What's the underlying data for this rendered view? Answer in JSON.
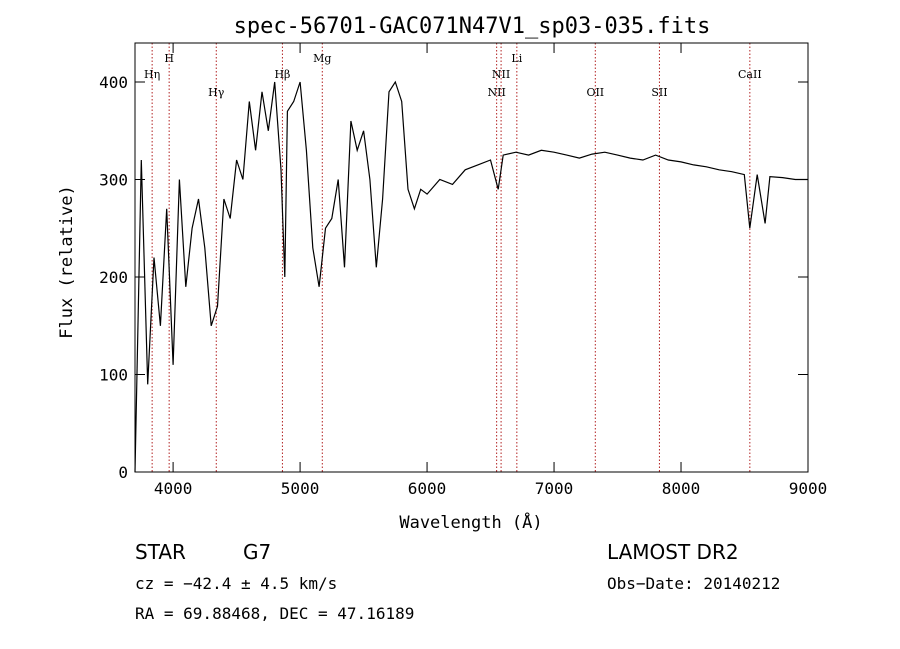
{
  "chart_data": {
    "type": "line",
    "title": "spec-56701-GAC071N47V1_sp03-035.fits",
    "xlabel": "Wavelength (Å)",
    "ylabel": "Flux (relative)",
    "xlim": [
      3700,
      9000
    ],
    "ylim": [
      0,
      440
    ],
    "x_ticks": [
      4000,
      5000,
      6000,
      7000,
      8000,
      9000
    ],
    "y_ticks": [
      0,
      100,
      200,
      300,
      400
    ],
    "grid": false,
    "line_color": "#000000",
    "marker_color": "#b22222",
    "spectral_lines": [
      {
        "label": "Hη",
        "x": 3835,
        "level": 2
      },
      {
        "label": "H",
        "x": 3969,
        "level": 1
      },
      {
        "label": "Hγ",
        "x": 4340,
        "level": 3
      },
      {
        "label": "Hβ",
        "x": 4861,
        "level": 2
      },
      {
        "label": "Mg",
        "x": 5175,
        "level": 1
      },
      {
        "label": "NII",
        "x": 6548,
        "level": 3
      },
      {
        "label": "NII",
        "x": 6583,
        "level": 2
      },
      {
        "label": "Li",
        "x": 6707,
        "level": 1
      },
      {
        "label": "OII",
        "x": 7325,
        "level": 3
      },
      {
        "label": "SII",
        "x": 7830,
        "level": 3
      },
      {
        "label": "CaII",
        "x": 8542,
        "level": 2
      }
    ],
    "series": [
      {
        "x": [
          3700,
          3750,
          3800,
          3850,
          3900,
          3950,
          4000,
          4050,
          4100,
          4150,
          4200,
          4250,
          4300,
          4350,
          4400,
          4450,
          4500,
          4550,
          4600,
          4650,
          4700,
          4750,
          4800,
          4850,
          4880,
          4900,
          4950,
          5000,
          5050,
          5100,
          5150,
          5200,
          5250,
          5300,
          5350,
          5400,
          5450,
          5500,
          5550,
          5600,
          5650,
          5700,
          5750,
          5800,
          5850,
          5900,
          5950,
          6000,
          6100,
          6200,
          6300,
          6400,
          6500,
          6560,
          6600,
          6700,
          6800,
          6900,
          7000,
          7100,
          7200,
          7300,
          7400,
          7500,
          7600,
          7700,
          7800,
          7900,
          8000,
          8100,
          8200,
          8300,
          8400,
          8498,
          8542,
          8600,
          8662,
          8700,
          8800,
          8900,
          9000
        ],
        "y": [
          0,
          320,
          90,
          220,
          150,
          270,
          110,
          300,
          190,
          250,
          280,
          230,
          150,
          170,
          280,
          260,
          320,
          300,
          380,
          330,
          390,
          350,
          400,
          310,
          200,
          370,
          380,
          400,
          330,
          230,
          190,
          250,
          260,
          300,
          210,
          360,
          330,
          350,
          300,
          210,
          280,
          390,
          400,
          380,
          290,
          270,
          290,
          285,
          300,
          295,
          310,
          315,
          320,
          290,
          325,
          328,
          325,
          330,
          328,
          325,
          322,
          326,
          328,
          325,
          322,
          320,
          325,
          320,
          318,
          315,
          313,
          310,
          308,
          305,
          250,
          305,
          255,
          303,
          302,
          300,
          300
        ]
      }
    ]
  },
  "footer": {
    "object_class": "STAR",
    "subclass": "G7",
    "survey": "LAMOST DR2",
    "cz": "cz = −42.4 ± 4.5 km/s",
    "obs_date": "Obs−Date: 20140212",
    "coords": "RA =  69.88468, DEC =  47.16189"
  }
}
